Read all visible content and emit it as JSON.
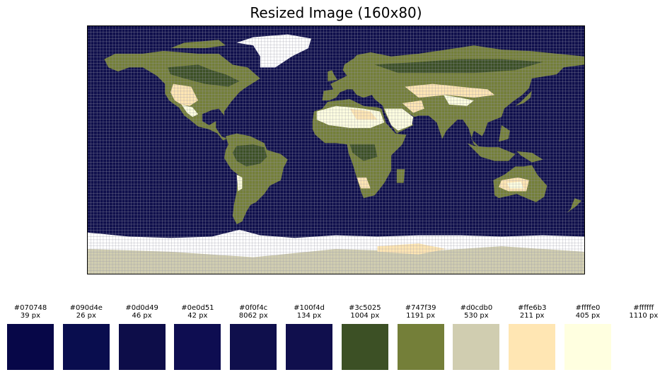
{
  "title": "Resized Image (160x80)",
  "chart_data": {
    "type": "heatmap",
    "title": "Resized Image (160x80)",
    "grid": true,
    "grid_size": {
      "columns": 160,
      "rows": 80
    },
    "color_legend": "palette below the map",
    "palette": [
      {
        "hex": "#070748",
        "label": "#070748",
        "count": 39,
        "count_label": "39 px"
      },
      {
        "hex": "#090d4e",
        "label": "#090d4e",
        "count": 26,
        "count_label": "26 px"
      },
      {
        "hex": "#0d0d49",
        "label": "#0d0d49",
        "count": 46,
        "count_label": "46 px"
      },
      {
        "hex": "#0e0d51",
        "label": "#0e0d51",
        "count": 42,
        "count_label": "42 px"
      },
      {
        "hex": "#0f0f4c",
        "label": "#0f0f4c",
        "count": 8062,
        "count_label": "8062 px"
      },
      {
        "hex": "#100f4d",
        "label": "#100f4d",
        "count": 134,
        "count_label": "134 px"
      },
      {
        "hex": "#3c5025",
        "label": "#3c5025",
        "count": 1004,
        "count_label": "1004 px"
      },
      {
        "hex": "#747f39",
        "label": "#747f39",
        "count": 1191,
        "count_label": "1191 px"
      },
      {
        "hex": "#d0cdb0",
        "label": "#d0cdb0",
        "count": 530,
        "count_label": "530 px"
      },
      {
        "hex": "#ffe6b3",
        "label": "#ffe6b3",
        "count": 211,
        "count_label": "211 px"
      },
      {
        "hex": "#ffffe0",
        "label": "#ffffe0",
        "count": 405,
        "count_label": "405 px"
      },
      {
        "hex": "#ffffff",
        "label": "#ffffff",
        "count": 1110,
        "count_label": "1110 px"
      }
    ],
    "colors": {
      "ocean": "#0f0f4c",
      "land": "#747f39",
      "forest": "#3c5025",
      "desert": "#ffe6b3",
      "sand": "#ffffe0",
      "tundra": "#d0cdb0",
      "ice": "#ffffff",
      "gridline": "#9a9aa8"
    }
  }
}
